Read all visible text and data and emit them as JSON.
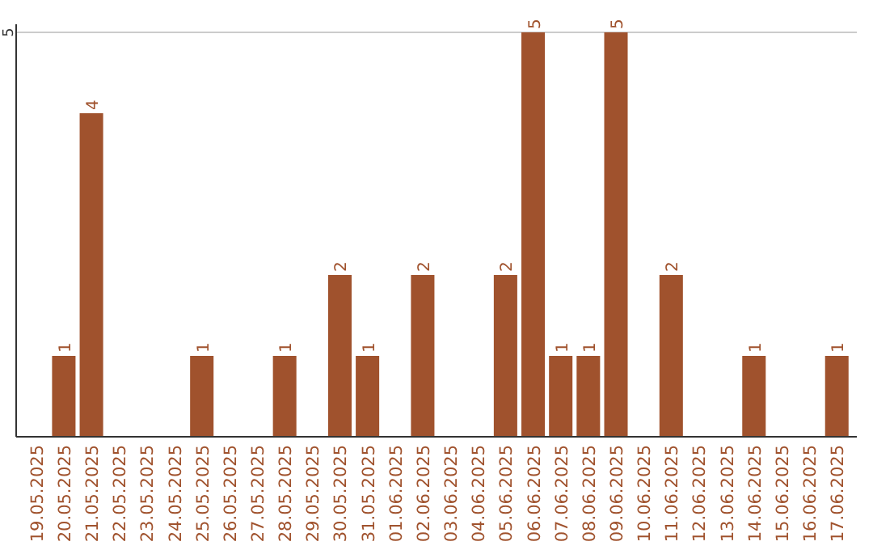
{
  "chart_data": {
    "type": "bar",
    "categories": [
      "19.05.2025",
      "20.05.2025",
      "21.05.2025",
      "22.05.2025",
      "23.05.2025",
      "24.05.2025",
      "25.05.2025",
      "26.05.2025",
      "27.05.2025",
      "28.05.2025",
      "29.05.2025",
      "30.05.2025",
      "31.05.2025",
      "01.06.2025",
      "02.06.2025",
      "03.06.2025",
      "04.06.2025",
      "05.06.2025",
      "06.06.2025",
      "07.06.2025",
      "08.06.2025",
      "09.06.2025",
      "10.06.2025",
      "11.06.2025",
      "12.06.2025",
      "13.06.2025",
      "14.06.2025",
      "15.06.2025",
      "16.06.2025",
      "17.06.2025"
    ],
    "values": [
      0,
      1,
      4,
      0,
      0,
      0,
      1,
      0,
      0,
      1,
      0,
      2,
      1,
      0,
      2,
      0,
      0,
      2,
      5,
      1,
      1,
      5,
      0,
      2,
      0,
      0,
      1,
      0,
      0,
      1
    ],
    "value_labels": [
      null,
      "1",
      "4",
      null,
      null,
      null,
      "1",
      null,
      null,
      "1",
      null,
      "2",
      "1",
      null,
      "2",
      null,
      null,
      "2",
      "5",
      "1",
      "1",
      "5",
      null,
      "2",
      null,
      null,
      "1",
      null,
      null,
      "1"
    ],
    "color": "#a0522d",
    "ylim": [
      0,
      5
    ],
    "yticks": [
      5
    ],
    "ref_lines": [
      {
        "axis": "y",
        "value": 5,
        "color": "#cccccc"
      }
    ]
  }
}
